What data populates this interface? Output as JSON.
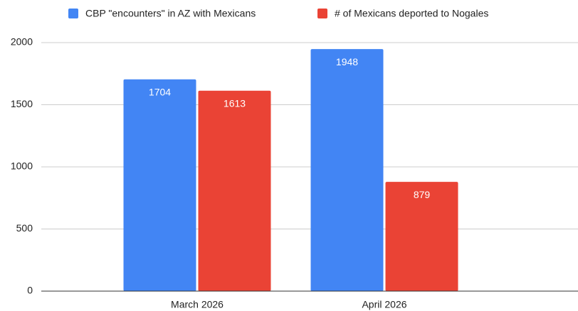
{
  "chart_data": {
    "type": "bar",
    "categories": [
      "March 2026",
      "April 2026"
    ],
    "series": [
      {
        "name": "CBP \"encounters\" in AZ with Mexicans",
        "color": "#4285f4",
        "values": [
          1704,
          1948
        ]
      },
      {
        "name": "# of Mexicans deported to Nogales",
        "color": "#ea4335",
        "values": [
          1613,
          879
        ]
      }
    ],
    "ylim": [
      0,
      2000
    ],
    "yticks": [
      0,
      500,
      1000,
      1500,
      2000
    ],
    "grid": true,
    "legend": "top"
  }
}
